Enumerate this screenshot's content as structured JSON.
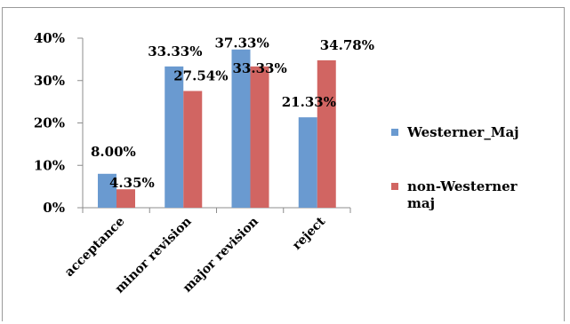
{
  "chart_data": {
    "type": "bar",
    "categories": [
      "acceptance",
      "minor revision",
      "major revision",
      "reject"
    ],
    "series": [
      {
        "name": "Westerner_Maj",
        "values": [
          8.0,
          33.33,
          37.33,
          21.33
        ],
        "labels": [
          "8.00%",
          "33.33%",
          "37.33%",
          "21.33%"
        ],
        "color": "#6a9ad0"
      },
      {
        "name_lines": [
          "non-Westerner",
          "maj"
        ],
        "values": [
          4.35,
          27.54,
          33.33,
          34.78
        ],
        "labels": [
          "4.35%",
          "27.54%",
          "33.33%",
          "34.78%"
        ],
        "color": "#d16562"
      }
    ],
    "y_ticks": [
      "0%",
      "10%",
      "20%",
      "30%",
      "40%"
    ],
    "y_tick_values": [
      0,
      10,
      20,
      30,
      40
    ],
    "ylim": [
      0,
      40
    ],
    "grid": false,
    "legend_position": "right"
  }
}
